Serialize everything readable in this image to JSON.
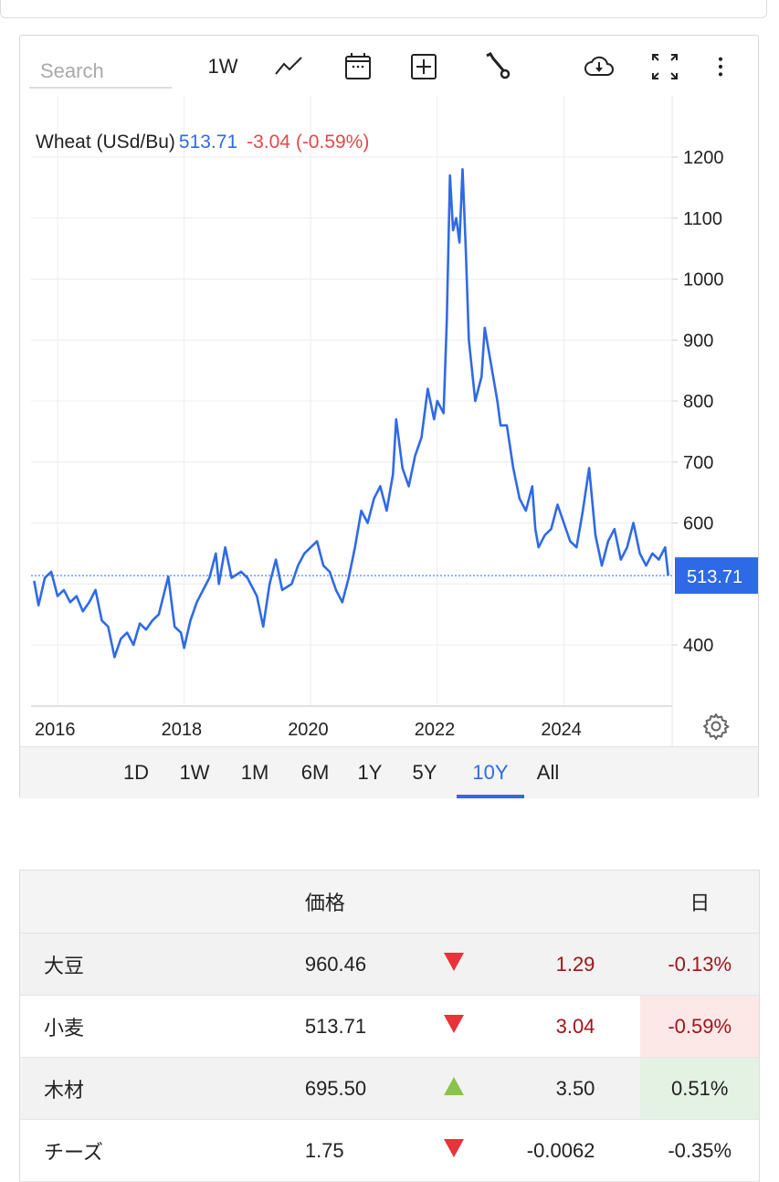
{
  "toolbar": {
    "search_placeholder": "Search",
    "interval_label": "1W",
    "icons": [
      "line-chart-icon",
      "calendar-icon",
      "add-box-icon",
      "wrench-icon",
      "cloud-download-icon",
      "fullscreen-icon",
      "more-vertical-icon"
    ]
  },
  "legend": {
    "name": "Wheat (USd/Bu)",
    "value": "513.71",
    "change": "-3.04 (-0.59%)"
  },
  "colors": {
    "line": "#2f6ae6",
    "negative": "#e0494a",
    "positive": "#8bc34a",
    "accent": "#2f6ae6"
  },
  "chart_data": {
    "type": "line",
    "ylim": [
      300,
      1250
    ],
    "y_ticks": [
      "400",
      "500",
      "600",
      "700",
      "800",
      "900",
      "1000",
      "1100",
      "1200"
    ],
    "y_tick_labels_shown": [
      "400",
      "600",
      "700",
      "800",
      "900",
      "1000",
      "1100",
      "1200"
    ],
    "x_ticks": [
      "2016",
      "2018",
      "2020",
      "2022",
      "2024"
    ],
    "grid": true,
    "last_value_label": "513.71",
    "series": [
      {
        "x": [
          2015.63,
          2015.7,
          2015.8,
          2015.9,
          2016.0,
          2016.1,
          2016.2,
          2016.3,
          2016.4,
          2016.5,
          2016.6,
          2016.7,
          2016.8,
          2016.9,
          2017.0,
          2017.1,
          2017.2,
          2017.3,
          2017.4,
          2017.5,
          2017.6,
          2017.75,
          2017.85,
          2017.95,
          2018.0,
          2018.1,
          2018.2,
          2018.3,
          2018.4,
          2018.5,
          2018.55,
          2018.65,
          2018.75,
          2018.9,
          2019.0,
          2019.15,
          2019.25,
          2019.35,
          2019.45,
          2019.55,
          2019.7,
          2019.8,
          2019.9,
          2020.0,
          2020.1,
          2020.2,
          2020.3,
          2020.4,
          2020.5,
          2020.6,
          2020.7,
          2020.8,
          2020.9,
          2021.0,
          2021.1,
          2021.2,
          2021.3,
          2021.35,
          2021.45,
          2021.55,
          2021.65,
          2021.75,
          2021.85,
          2021.95,
          2022.0,
          2022.1,
          2022.15,
          2022.2,
          2022.25,
          2022.3,
          2022.35,
          2022.4,
          2022.45,
          2022.5,
          2022.6,
          2022.7,
          2022.75,
          2022.85,
          2022.95,
          2023.0,
          2023.1,
          2023.2,
          2023.3,
          2023.4,
          2023.5,
          2023.55,
          2023.6,
          2023.7,
          2023.8,
          2023.9,
          2024.0,
          2024.1,
          2024.2,
          2024.3,
          2024.4,
          2024.5,
          2024.6,
          2024.7,
          2024.8,
          2024.9,
          2025.0,
          2025.1,
          2025.2,
          2025.3,
          2025.4,
          2025.5,
          2025.6,
          2025.65
        ],
        "y": [
          505,
          465,
          510,
          520,
          480,
          490,
          470,
          480,
          455,
          470,
          490,
          440,
          430,
          380,
          410,
          420,
          400,
          435,
          425,
          440,
          450,
          512,
          430,
          420,
          395,
          440,
          470,
          490,
          510,
          550,
          500,
          560,
          510,
          520,
          510,
          480,
          430,
          500,
          540,
          490,
          500,
          530,
          550,
          560,
          570,
          530,
          520,
          490,
          470,
          510,
          560,
          620,
          600,
          640,
          660,
          620,
          680,
          770,
          690,
          660,
          710,
          740,
          820,
          770,
          800,
          780,
          930,
          1170,
          1080,
          1100,
          1060,
          1180,
          1050,
          900,
          800,
          840,
          920,
          860,
          800,
          760,
          760,
          690,
          640,
          620,
          660,
          590,
          560,
          580,
          590,
          630,
          600,
          570,
          560,
          620,
          690,
          580,
          530,
          570,
          590,
          540,
          560,
          600,
          550,
          530,
          550,
          540,
          560,
          513.71
        ]
      }
    ]
  },
  "range_buttons": [
    "1D",
    "1W",
    "1M",
    "6M",
    "1Y",
    "5Y",
    "10Y",
    "All"
  ],
  "range_active": "10Y",
  "table": {
    "headers": [
      "",
      "価格",
      "",
      "",
      "日"
    ],
    "rows": [
      {
        "name": "大豆",
        "price": "960.46",
        "dir": "down",
        "change": "1.29",
        "pct": "-0.13%"
      },
      {
        "name": "小麦",
        "price": "513.71",
        "dir": "down",
        "change": "3.04",
        "pct": "-0.59%"
      },
      {
        "name": "木材",
        "price": "695.50",
        "dir": "up",
        "change": "3.50",
        "pct": "0.51%"
      },
      {
        "name": "チーズ",
        "price": "1.75",
        "dir": "down",
        "change": "-0.0062",
        "pct": "-0.35%"
      }
    ]
  }
}
